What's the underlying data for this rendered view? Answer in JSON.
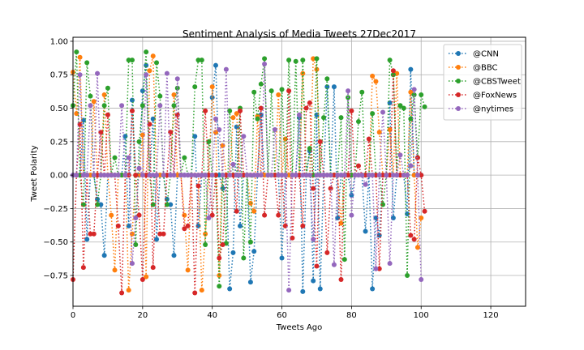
{
  "chart_data": {
    "type": "line",
    "title": "Sentiment Analysis of Media Tweets 27Dec2017",
    "xlabel": "Tweets Ago",
    "ylabel": "Tweet Polarity",
    "xlim": [
      0,
      130
    ],
    "ylim": [
      -0.98,
      1.03
    ],
    "xticks": [
      0,
      20,
      40,
      60,
      80,
      100,
      120
    ],
    "yticks": [
      -0.75,
      -0.5,
      -0.25,
      0.0,
      0.25,
      0.5,
      0.75,
      1.0
    ],
    "ytick_labels": [
      "−0.75",
      "−0.50",
      "−0.25",
      "0.00",
      "0.25",
      "0.50",
      "0.75",
      "1.00"
    ],
    "grid": true,
    "line_style": "dotted",
    "marker": "circle",
    "legend_position": "top-right",
    "series": [
      {
        "name": "@CNN",
        "color": "#1f77b4",
        "values": [
          0.0,
          0.0,
          0.0,
          0.41,
          -0.48,
          0.0,
          0.0,
          -0.18,
          -0.22,
          -0.6,
          0.0,
          0.0,
          0.0,
          0.0,
          0.0,
          0.29,
          -0.38,
          0.56,
          0.0,
          0.0,
          0.63,
          0.82,
          0.0,
          0.42,
          -0.48,
          0.0,
          0.0,
          -0.18,
          -0.22,
          -0.6,
          0.0,
          0.0,
          0.0,
          0.0,
          0.0,
          0.29,
          -0.38,
          0.0,
          0.0,
          0.0,
          0.58,
          0.82,
          0.0,
          -0.1,
          0.0,
          -0.85,
          -0.58,
          0.36,
          -0.38,
          0.0,
          0.0,
          -0.8,
          -0.57,
          0.0,
          0.45,
          0.0,
          0.0,
          0.0,
          0.0,
          0.0,
          -0.62,
          0.0,
          0.0,
          0.0,
          0.0,
          0.43,
          -0.87,
          0.0,
          0.18,
          -0.79,
          0.45,
          -0.85,
          0.0,
          0.66,
          0.0,
          0.66,
          -0.32,
          0.0,
          0.0,
          0.0,
          -0.15,
          0.0,
          0.0,
          0.0,
          -0.42,
          0.0,
          -0.85,
          -0.32,
          -0.45,
          0.0,
          0.0,
          0.54,
          -0.32,
          0.0,
          0.0,
          0.0,
          -0.29,
          0.79,
          0.0,
          0.0,
          0.0
        ]
      },
      {
        "name": "@BBC",
        "color": "#ff7f0e",
        "values": [
          0.77,
          0.46,
          0.88,
          0.0,
          0.0,
          0.0,
          0.55,
          0.0,
          0.0,
          0.6,
          0.0,
          -0.3,
          -0.71,
          0.0,
          0.0,
          0.0,
          -0.86,
          -0.44,
          0.0,
          0.0,
          0.3,
          -0.76,
          0.78,
          0.89,
          0.0,
          0.0,
          0.0,
          0.0,
          0.0,
          0.6,
          0.0,
          0.0,
          -0.3,
          -0.71,
          0.0,
          0.0,
          0.0,
          -0.86,
          -0.44,
          0.0,
          0.66,
          0.32,
          -0.75,
          0.22,
          0.0,
          0.0,
          0.43,
          0.46,
          0.0,
          0.0,
          0.0,
          -0.21,
          -0.27,
          0.44,
          0.0,
          0.0,
          0.0,
          0.0,
          0.0,
          0.6,
          0.0,
          0.27,
          0.0,
          0.0,
          0.0,
          0.0,
          0.76,
          0.0,
          0.0,
          0.87,
          0.79,
          0.0,
          0.0,
          0.0,
          0.0,
          0.0,
          0.0,
          -0.36,
          0.0,
          0.0,
          0.0,
          0.0,
          0.0,
          0.0,
          0.0,
          0.0,
          0.74,
          0.7,
          0.32,
          0.0,
          0.0,
          0.34,
          0.0,
          0.76,
          0.0,
          0.0,
          0.0,
          0.62,
          0.0,
          -0.54,
          -0.32
        ]
      },
      {
        "name": "@CBSTweet",
        "color": "#2ca02c",
        "values": [
          0.52,
          0.92,
          0.0,
          -0.22,
          0.84,
          0.59,
          0.0,
          -0.22,
          0.0,
          0.52,
          0.65,
          0.0,
          0.13,
          0.0,
          0.0,
          0.0,
          0.86,
          0.86,
          -0.52,
          0.25,
          0.52,
          0.92,
          0.0,
          -0.22,
          0.84,
          0.59,
          0.0,
          -0.22,
          0.0,
          0.52,
          0.65,
          0.0,
          0.13,
          0.0,
          0.0,
          0.66,
          0.86,
          0.86,
          -0.52,
          0.25,
          0.0,
          0.0,
          -0.83,
          0.0,
          -0.51,
          0.48,
          0.0,
          0.0,
          0.5,
          -0.62,
          0.0,
          -0.5,
          0.62,
          0.42,
          0.68,
          0.87,
          0.0,
          0.63,
          0.0,
          0.0,
          0.64,
          0.0,
          0.86,
          0.0,
          0.85,
          0.0,
          0.86,
          0.0,
          0.2,
          0.0,
          0.87,
          0.0,
          0.43,
          0.72,
          0.0,
          0.0,
          0.0,
          0.43,
          -0.63,
          0.58,
          0.0,
          0.0,
          0.4,
          0.62,
          0.0,
          0.0,
          0.46,
          0.0,
          0.0,
          -0.22,
          0.0,
          0.86,
          0.75,
          0.0,
          0.52,
          0.5,
          -0.75,
          0.42,
          0.6,
          0.13,
          0.6,
          0.51
        ]
      },
      {
        "name": "@FoxNews",
        "color": "#d62728",
        "values": [
          -0.78,
          0.0,
          0.38,
          -0.69,
          0.0,
          -0.44,
          -0.44,
          0.0,
          0.32,
          0.0,
          0.45,
          0.0,
          0.0,
          -0.38,
          -0.88,
          0.0,
          0.0,
          0.48,
          0.0,
          -0.3,
          -0.78,
          0.0,
          0.38,
          -0.69,
          0.0,
          -0.44,
          -0.44,
          0.0,
          0.32,
          0.0,
          0.45,
          0.0,
          -0.4,
          -0.38,
          0.0,
          -0.88,
          -0.08,
          0.0,
          0.48,
          0.0,
          -0.3,
          0.0,
          -0.62,
          -0.52,
          0.0,
          0.0,
          0.0,
          -0.27,
          0.48,
          0.0,
          0.0,
          0.0,
          0.0,
          0.0,
          0.5,
          -0.3,
          0.0,
          0.0,
          0.0,
          -0.3,
          0.0,
          -0.38,
          0.63,
          -0.47,
          0.0,
          0.0,
          -0.38,
          0.5,
          0.54,
          -0.1,
          -0.68,
          0.25,
          0.0,
          -0.58,
          -0.1,
          0.0,
          0.0,
          -0.78,
          0.0,
          0.0,
          0.48,
          0.0,
          0.07,
          0.0,
          0.0,
          0.27,
          0.0,
          0.0,
          -0.7,
          0.0,
          0.0,
          0.0,
          0.78,
          0.0,
          0.0,
          0.0,
          0.0,
          -0.45,
          -0.48,
          0.13,
          0.0,
          -0.27
        ]
      },
      {
        "name": "@nytimes",
        "color": "#9467bd",
        "values": [
          0.0,
          0.0,
          0.75,
          0.0,
          0.0,
          0.52,
          0.0,
          0.76,
          0.0,
          0.0,
          0.0,
          0.0,
          0.0,
          0.0,
          0.52,
          0.0,
          0.13,
          -0.66,
          -0.32,
          0.05,
          0.0,
          0.75,
          0.0,
          0.0,
          0.0,
          0.52,
          0.0,
          0.76,
          0.0,
          0.0,
          0.72,
          0.0,
          0.0,
          0.0,
          0.0,
          0.0,
          0.0,
          0.0,
          0.0,
          -0.32,
          0.0,
          0.42,
          0.34,
          0.0,
          0.79,
          0.0,
          0.08,
          0.0,
          0.0,
          0.29,
          0.0,
          0.0,
          0.0,
          0.0,
          0.0,
          0.83,
          0.0,
          0.0,
          0.34,
          0.0,
          0.0,
          0.0,
          -0.86,
          0.0,
          0.0,
          0.45,
          0.0,
          0.0,
          0.0,
          -0.48,
          0.0,
          0.0,
          0.0,
          0.0,
          0.0,
          -0.67,
          0.0,
          0.0,
          0.0,
          0.63,
          -0.3,
          0.0,
          0.0,
          0.0,
          -0.07,
          0.0,
          0.0,
          -0.7,
          0.0,
          0.47,
          0.0,
          -0.66,
          0.0,
          0.0,
          0.15,
          0.0,
          0.0,
          0.07,
          0.64,
          0.0,
          -0.78
        ]
      }
    ]
  }
}
